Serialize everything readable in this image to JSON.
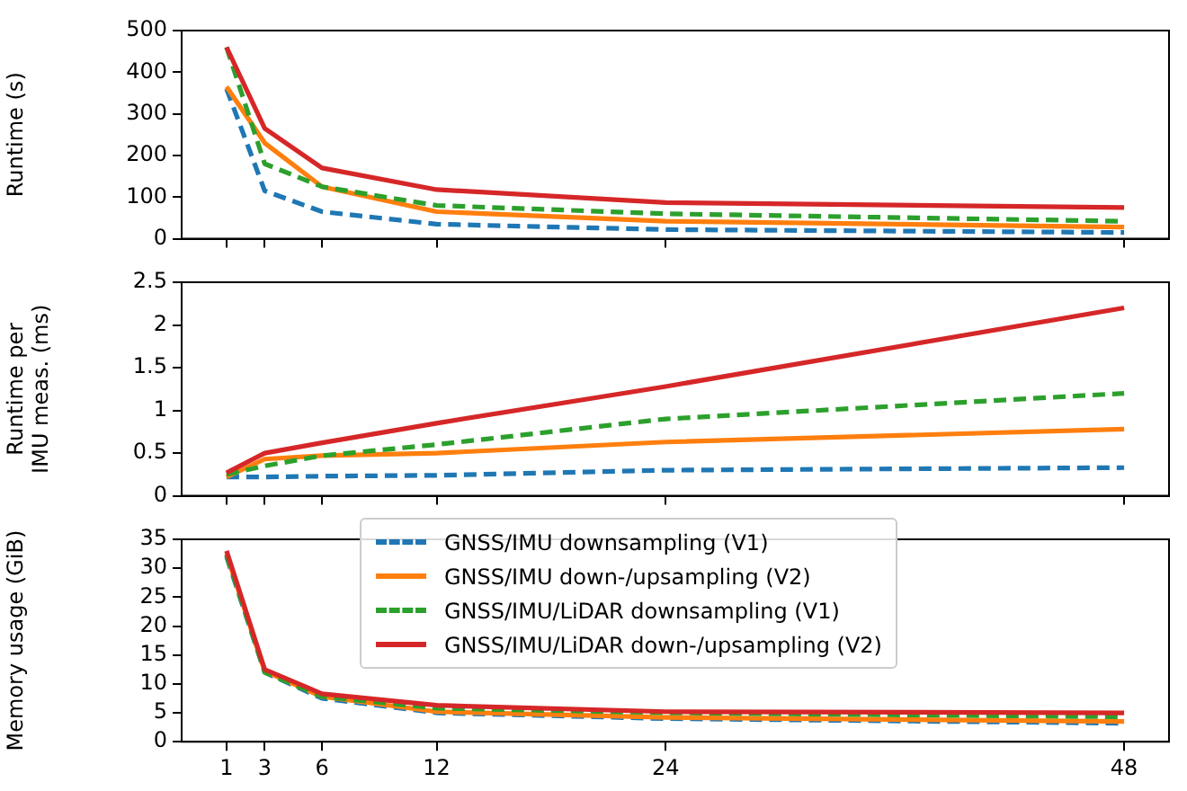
{
  "chart_data": [
    {
      "type": "line",
      "x": [
        1,
        3,
        6,
        12,
        24,
        48
      ],
      "xlim": [
        -1.35,
        50.35
      ],
      "xticks": [
        1,
        3,
        6,
        12,
        24,
        48
      ],
      "ylim": [
        0,
        500
      ],
      "yticks": [
        0,
        100,
        200,
        300,
        400,
        500
      ],
      "ylabel": "Runtime (s)",
      "tick_labels": "y",
      "grid": false,
      "legend": false,
      "series": [
        {
          "color": "#1f77b4",
          "line_style": "dashed",
          "values": [
            360,
            115,
            65,
            35,
            22,
            15
          ]
        },
        {
          "color": "#ff7f0e",
          "line_style": "solid",
          "values": [
            365,
            230,
            125,
            65,
            42,
            28
          ]
        },
        {
          "color": "#2ca02c",
          "line_style": "dashed",
          "values": [
            460,
            180,
            125,
            80,
            60,
            42
          ]
        },
        {
          "color": "#d62728",
          "line_style": "solid",
          "values": [
            460,
            265,
            170,
            118,
            87,
            75
          ]
        }
      ]
    },
    {
      "type": "line",
      "x": [
        1,
        3,
        6,
        12,
        24,
        48
      ],
      "xlim": [
        -1.35,
        50.35
      ],
      "xticks": [
        1,
        3,
        6,
        12,
        24,
        48
      ],
      "ylim": [
        0,
        2.5
      ],
      "yticks": [
        0,
        0.5,
        1,
        1.5,
        2,
        2.5
      ],
      "ylabel": "Runtime per\nIMU meas. (ms)",
      "tick_labels": "y",
      "grid": false,
      "legend": false,
      "series": [
        {
          "color": "#1f77b4",
          "line_style": "dashed",
          "values": [
            0.22,
            0.22,
            0.23,
            0.24,
            0.3,
            0.33
          ]
        },
        {
          "color": "#ff7f0e",
          "line_style": "solid",
          "values": [
            0.22,
            0.43,
            0.47,
            0.5,
            0.63,
            0.78
          ]
        },
        {
          "color": "#2ca02c",
          "line_style": "dashed",
          "values": [
            0.25,
            0.35,
            0.47,
            0.6,
            0.9,
            1.2
          ]
        },
        {
          "color": "#d62728",
          "line_style": "solid",
          "values": [
            0.27,
            0.5,
            0.62,
            0.85,
            1.28,
            2.2
          ]
        }
      ]
    },
    {
      "type": "line",
      "x": [
        1,
        3,
        6,
        12,
        24,
        48
      ],
      "xlim": [
        -1.35,
        50.35
      ],
      "xticks": [
        1,
        3,
        6,
        12,
        24,
        48
      ],
      "ylim": [
        0,
        35
      ],
      "yticks": [
        0,
        5,
        10,
        15,
        20,
        25,
        30,
        35
      ],
      "ylabel": "Memory usage (GiB)",
      "grid": false,
      "legend": "top",
      "series": [
        {
          "name": "GNSS/IMU downsampling (V1)",
          "color": "#1f77b4",
          "line_style": "dashed",
          "values": [
            32,
            12,
            7.5,
            5,
            4,
            3.2
          ]
        },
        {
          "name": "GNSS/IMU down-/upsampling (V2)",
          "color": "#ff7f0e",
          "line_style": "solid",
          "values": [
            32.5,
            12.2,
            7.8,
            5.2,
            4.2,
            3.5
          ]
        },
        {
          "name": "GNSS/IMU/LiDAR downsampling (V1)",
          "color": "#2ca02c",
          "line_style": "dashed",
          "values": [
            32.3,
            12,
            7.8,
            5.8,
            5,
            4.3
          ]
        },
        {
          "name": "GNSS/IMU/LiDAR down-/upsampling (V2)",
          "color": "#d62728",
          "line_style": "solid",
          "values": [
            33,
            12.5,
            8.3,
            6.3,
            5.2,
            5
          ]
        }
      ]
    }
  ]
}
